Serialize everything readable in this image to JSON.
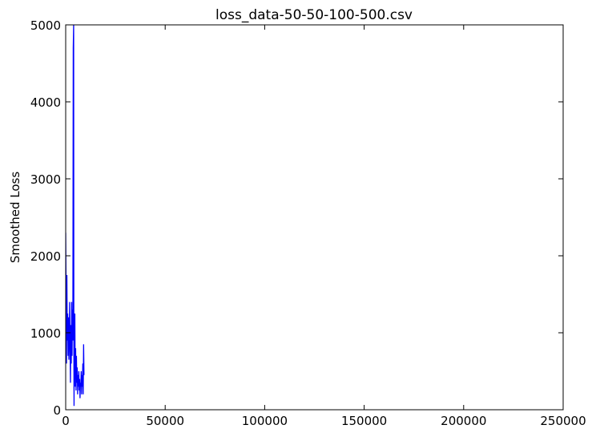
{
  "chart_data": {
    "type": "line",
    "title": "loss_data-50-50-100-500.csv",
    "xlabel": "",
    "ylabel": "Smoothed Loss",
    "xlim": [
      0,
      250000
    ],
    "ylim": [
      0,
      5000
    ],
    "x_ticks": [
      "0",
      "50000",
      "100000",
      "150000",
      "200000",
      "250000"
    ],
    "y_ticks": [
      "0",
      "1000",
      "2000",
      "3000",
      "4000",
      "5000"
    ],
    "grid": false,
    "line_color": "#0000ff",
    "series": [
      {
        "x": [
          0,
          200,
          400,
          600,
          800,
          1000,
          1200,
          1400,
          1600,
          1800,
          2000,
          2200,
          2400,
          2600,
          2800,
          3000,
          3200,
          3400,
          3600,
          3800,
          4000,
          4100,
          4200,
          4300,
          4400,
          4600,
          4800,
          5000,
          5200,
          5400,
          5600,
          5800,
          6000,
          6200,
          6400,
          6600,
          6800,
          7000,
          7200,
          7400,
          7600,
          7800,
          8000,
          8200,
          8400,
          8600,
          8800,
          9000,
          9200
        ],
        "y": [
          2300,
          1500,
          600,
          1750,
          900,
          1250,
          700,
          1200,
          650,
          1000,
          1400,
          800,
          350,
          1100,
          600,
          1400,
          700,
          1300,
          900,
          4700,
          5000,
          900,
          50,
          1200,
          400,
          1250,
          300,
          800,
          250,
          700,
          350,
          550,
          200,
          450,
          300,
          500,
          250,
          400,
          150,
          350,
          300,
          500,
          200,
          450,
          300,
          600,
          200,
          850,
          450
        ]
      }
    ]
  }
}
